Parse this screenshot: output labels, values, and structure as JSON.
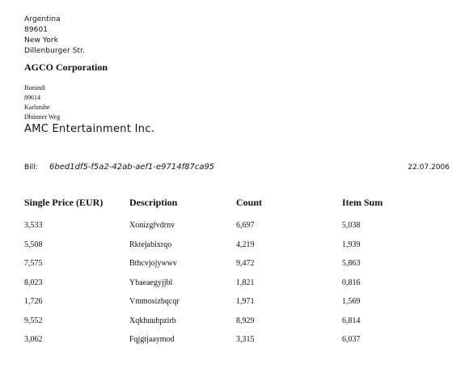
{
  "sender": {
    "country": "Argentina",
    "zip": "89601",
    "city": "New York",
    "street": "Dillenburger Str.",
    "company": "AGCO Corporation"
  },
  "recipient": {
    "country": "Burundi",
    "zip": "89614",
    "city": "Karlsruhe",
    "street": "Dhünner Weg",
    "company": "AMC Entertainment Inc."
  },
  "bill": {
    "label": "Bill:",
    "id": "6bed1df5-f5a2-42ab-aef1-e9714f87ca95",
    "date": "22.07.2006"
  },
  "table": {
    "headers": [
      "Single Price (EUR)",
      "Description",
      "Count",
      "Item Sum"
    ],
    "rows": [
      [
        "3,533",
        "Xonizgfvdrnv",
        "6,697",
        "5,038"
      ],
      [
        "5,508",
        "Rktejabixrqo",
        "4,219",
        "1,939"
      ],
      [
        "7,575",
        "Bthcvjojywwv",
        "9,472",
        "5,863"
      ],
      [
        "8,023",
        "Ybaeaegyjjbl",
        "1,821",
        "0,816"
      ],
      [
        "1,726",
        "Vmmosizbqcqr",
        "1,971",
        "1,569"
      ],
      [
        "9,552",
        "Xqkhuuhpzirb",
        "8,929",
        "6,814"
      ],
      [
        "3,062",
        "Fqjgtjaaymod",
        "3,315",
        "6,037"
      ]
    ]
  }
}
